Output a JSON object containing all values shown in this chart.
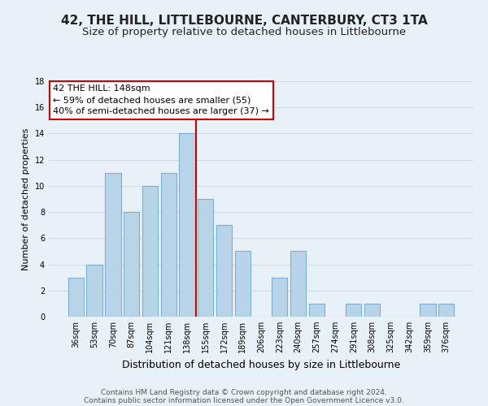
{
  "title": "42, THE HILL, LITTLEBOURNE, CANTERBURY, CT3 1TA",
  "subtitle": "Size of property relative to detached houses in Littlebourne",
  "xlabel": "Distribution of detached houses by size in Littlebourne",
  "ylabel": "Number of detached properties",
  "bar_labels": [
    "36sqm",
    "53sqm",
    "70sqm",
    "87sqm",
    "104sqm",
    "121sqm",
    "138sqm",
    "155sqm",
    "172sqm",
    "189sqm",
    "206sqm",
    "223sqm",
    "240sqm",
    "257sqm",
    "274sqm",
    "291sqm",
    "308sqm",
    "325sqm",
    "342sqm",
    "359sqm",
    "376sqm"
  ],
  "bar_values": [
    3,
    4,
    11,
    8,
    10,
    11,
    14,
    9,
    7,
    5,
    0,
    3,
    5,
    1,
    0,
    1,
    1,
    0,
    0,
    1,
    1
  ],
  "bar_color": "#b8d4e8",
  "bar_edge_color": "#7bafd4",
  "annotation_title": "42 THE HILL: 148sqm",
  "annotation_line1": "← 59% of detached houses are smaller (55)",
  "annotation_line2": "40% of semi-detached houses are larger (37) →",
  "annotation_box_color": "#ffffff",
  "annotation_box_edge_color": "#cc0000",
  "vline_color": "#cc0000",
  "ylim": [
    0,
    18
  ],
  "yticks": [
    0,
    2,
    4,
    6,
    8,
    10,
    12,
    14,
    16,
    18
  ],
  "grid_color": "#d0dce8",
  "bg_color": "#e8f0f8",
  "footer1": "Contains HM Land Registry data © Crown copyright and database right 2024.",
  "footer2": "Contains public sector information licensed under the Open Government Licence v3.0.",
  "title_fontsize": 11,
  "subtitle_fontsize": 9.5,
  "xlabel_fontsize": 9,
  "ylabel_fontsize": 8,
  "tick_fontsize": 7,
  "footer_fontsize": 6.5,
  "annotation_fontsize": 8
}
